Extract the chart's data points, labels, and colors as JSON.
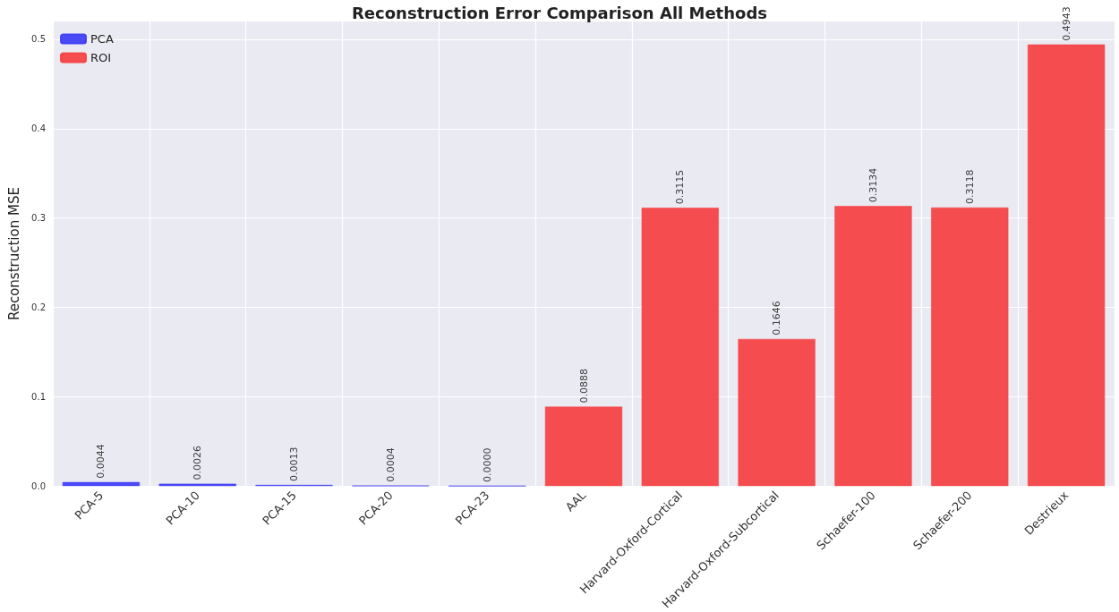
{
  "chart_data": {
    "type": "bar",
    "title": "Reconstruction Error Comparison All Methods",
    "ylabel": "Reconstruction MSE",
    "categories": [
      "PCA-5",
      "PCA-10",
      "PCA-15",
      "PCA-20",
      "PCA-23",
      "AAL",
      "Harvard-Oxford-Cortical",
      "Harvard-Oxford-Subcortical",
      "Schaefer-100",
      "Schaefer-200",
      "Destrieux"
    ],
    "series": [
      {
        "name": "PCA",
        "color": "#4040f5",
        "values": [
          0.0044,
          0.0026,
          0.0013,
          0.0004,
          0.0,
          null,
          null,
          null,
          null,
          null,
          null
        ],
        "value_labels": [
          "0.0044",
          "0.0026",
          "0.0013",
          "0.0004",
          "0.0000",
          null,
          null,
          null,
          null,
          null,
          null
        ]
      },
      {
        "name": "ROI",
        "color": "#f54346",
        "values": [
          null,
          null,
          null,
          null,
          null,
          0.0888,
          0.3115,
          0.1646,
          0.3134,
          0.3118,
          0.4943
        ],
        "value_labels": [
          null,
          null,
          null,
          null,
          null,
          "0.0888",
          "0.3115",
          "0.1646",
          "0.3134",
          "0.3118",
          "0.4943"
        ]
      }
    ],
    "ylim": [
      0,
      0.52
    ],
    "yticks": [
      {
        "value": 0,
        "label": "0.0"
      },
      {
        "value": 0.1,
        "label": "0.1"
      },
      {
        "value": 0.2,
        "label": "0.2"
      },
      {
        "value": 0.3,
        "label": "0.3"
      },
      {
        "value": 0.4,
        "label": "0.4"
      },
      {
        "value": 0.5,
        "label": "0.5"
      }
    ],
    "grid": true,
    "legend": "top left"
  }
}
